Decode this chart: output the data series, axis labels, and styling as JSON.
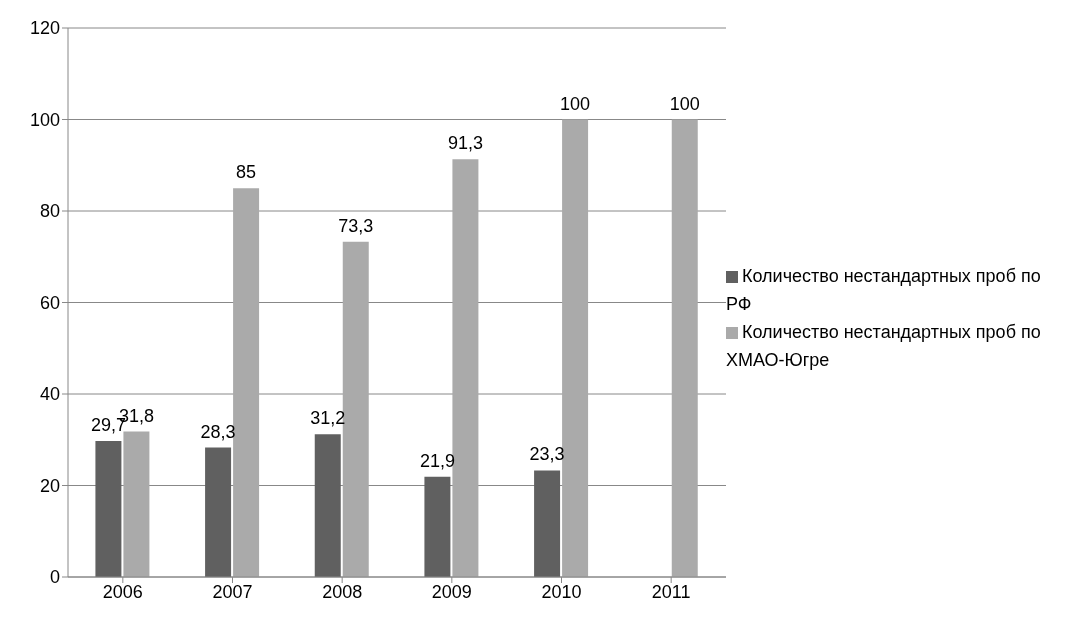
{
  "chart_data": {
    "type": "bar",
    "categories": [
      "2006",
      "2007",
      "2008",
      "2009",
      "2010",
      "2011"
    ],
    "series": [
      {
        "name": "Количество нестандартных проб по РФ",
        "color": "#606060",
        "values": [
          29.7,
          28.3,
          31.2,
          21.9,
          23.3,
          null
        ],
        "value_labels": [
          "29,7",
          "28,3",
          "31,2",
          "21,9",
          "23,3",
          null
        ]
      },
      {
        "name": "Количество нестандартных проб по ХМАО-Югре",
        "color": "#aaaaaa",
        "values": [
          31.8,
          85,
          73.3,
          91.3,
          100,
          100
        ],
        "value_labels": [
          "31,8",
          "85",
          "73,3",
          "91,3",
          "100",
          "100"
        ]
      }
    ],
    "ylim": [
      0,
      120
    ],
    "yticks": [
      0,
      20,
      40,
      60,
      80,
      100,
      120
    ],
    "grid": "y",
    "legend": "right"
  }
}
